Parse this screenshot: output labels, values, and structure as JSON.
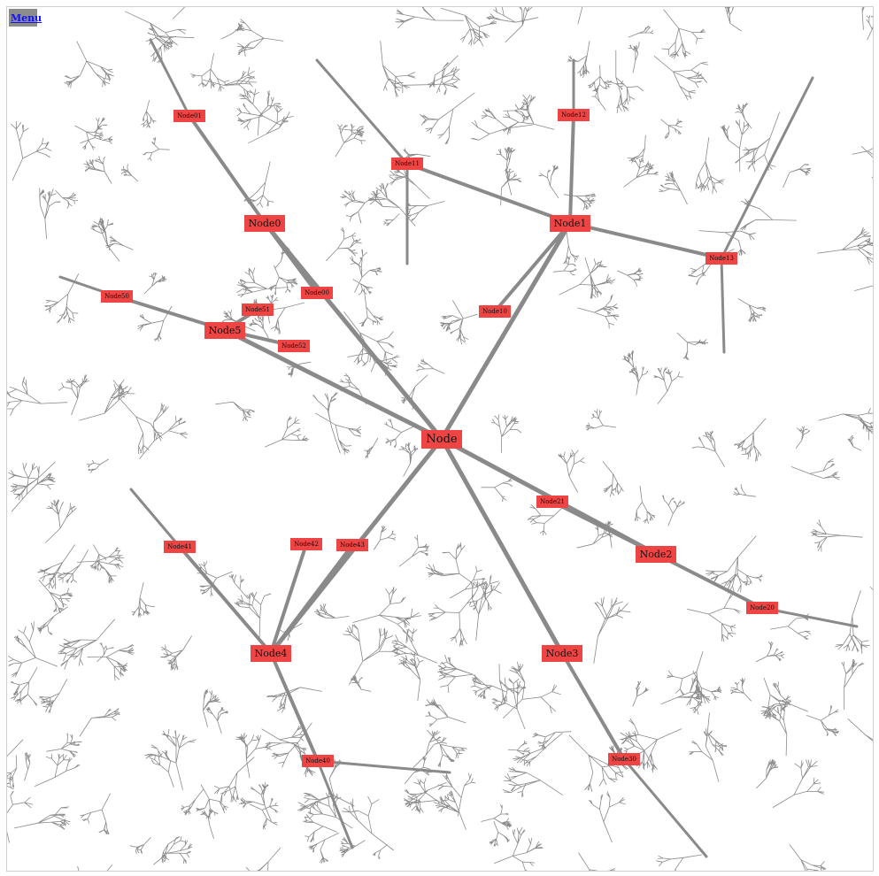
{
  "menu": {
    "label": "Menu"
  },
  "colors": {
    "edge": "#8a8a8a",
    "node_fill": "#ef4444",
    "menu_bg": "#8c8c8c",
    "menu_text": "#1010ff"
  },
  "graph": {
    "nodes": [
      {
        "id": "Node",
        "label": "Node",
        "level": 0
      },
      {
        "id": "Node0",
        "label": "Node0",
        "level": 1,
        "parent": "Node"
      },
      {
        "id": "Node1",
        "label": "Node1",
        "level": 1,
        "parent": "Node"
      },
      {
        "id": "Node2",
        "label": "Node2",
        "level": 1,
        "parent": "Node"
      },
      {
        "id": "Node3",
        "label": "Node3",
        "level": 1,
        "parent": "Node"
      },
      {
        "id": "Node4",
        "label": "Node4",
        "level": 1,
        "parent": "Node"
      },
      {
        "id": "Node5",
        "label": "Node5",
        "level": 1,
        "parent": "Node"
      },
      {
        "id": "Node00",
        "label": "Node00",
        "level": 2,
        "parent": "Node0"
      },
      {
        "id": "Node01",
        "label": "Node01",
        "level": 2,
        "parent": "Node0"
      },
      {
        "id": "Node10",
        "label": "Node10",
        "level": 2,
        "parent": "Node1"
      },
      {
        "id": "Node11",
        "label": "Node11",
        "level": 2,
        "parent": "Node1"
      },
      {
        "id": "Node12",
        "label": "Node12",
        "level": 2,
        "parent": "Node1"
      },
      {
        "id": "Node13",
        "label": "Node13",
        "level": 2,
        "parent": "Node1"
      },
      {
        "id": "Node20",
        "label": "Node20",
        "level": 2,
        "parent": "Node2"
      },
      {
        "id": "Node21",
        "label": "Node21",
        "level": 2,
        "parent": "Node2"
      },
      {
        "id": "Node30",
        "label": "Node30",
        "level": 2,
        "parent": "Node3"
      },
      {
        "id": "Node40",
        "label": "Node40",
        "level": 2,
        "parent": "Node4"
      },
      {
        "id": "Node41",
        "label": "Node41",
        "level": 2,
        "parent": "Node4"
      },
      {
        "id": "Node42",
        "label": "Node42",
        "level": 2,
        "parent": "Node4"
      },
      {
        "id": "Node43",
        "label": "Node43",
        "level": 2,
        "parent": "Node4"
      },
      {
        "id": "Node50",
        "label": "Node50",
        "level": 2,
        "parent": "Node5"
      },
      {
        "id": "Node51",
        "label": "Node51",
        "level": 2,
        "parent": "Node5"
      },
      {
        "id": "Node52",
        "label": "Node52",
        "level": 2,
        "parent": "Node5"
      }
    ]
  }
}
